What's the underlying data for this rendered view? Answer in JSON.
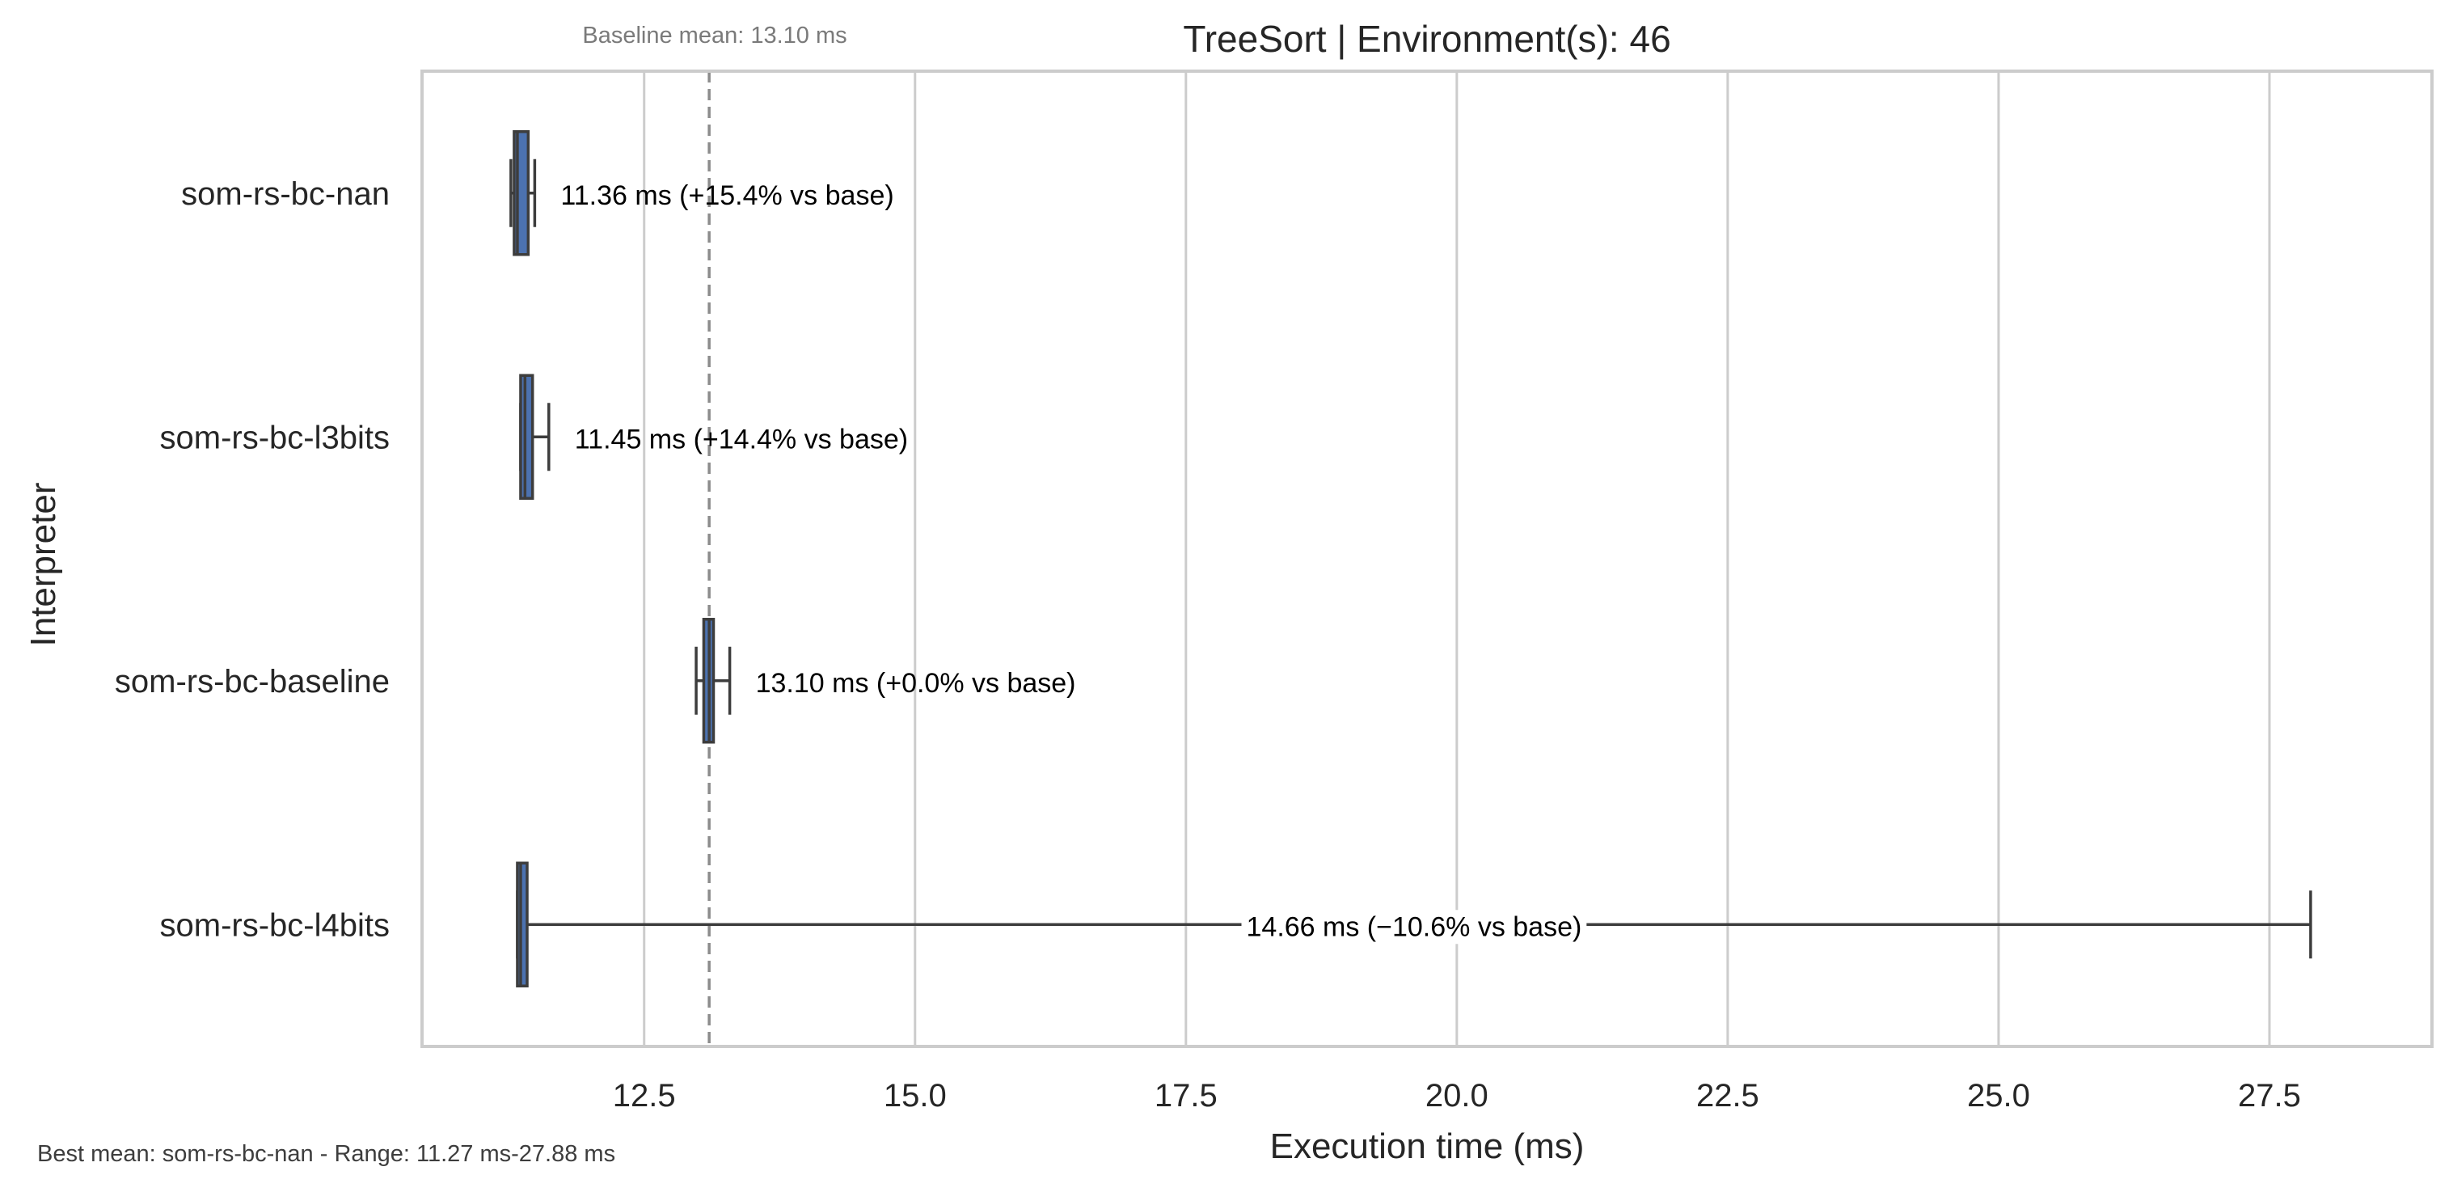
{
  "chart_data": {
    "type": "box",
    "orientation": "horizontal",
    "title": "TreeSort | Environment(s): 46",
    "xlabel": "Execution time (ms)",
    "ylabel": "Interpreter",
    "xlim": [
      10.45,
      29.0
    ],
    "xticks": [
      12.5,
      15.0,
      17.5,
      20.0,
      22.5,
      25.0,
      27.5
    ],
    "xtick_labels": [
      "12.5",
      "15.0",
      "17.5",
      "20.0",
      "22.5",
      "25.0",
      "27.5"
    ],
    "grid": "vertical",
    "box_color": "#4c72b0",
    "baseline": {
      "value": 13.1,
      "label": "Baseline mean: 13.10 ms"
    },
    "categories": [
      "som-rs-bc-nan",
      "som-rs-bc-l3bits",
      "som-rs-bc-baseline",
      "som-rs-bc-l4bits"
    ],
    "boxes": [
      {
        "name": "som-rs-bc-nan",
        "whisker_low": 11.27,
        "q1": 11.3,
        "median": 11.33,
        "q3": 11.43,
        "whisker_high": 11.49,
        "annotation": "11.36 ms  (+15.4% vs base)"
      },
      {
        "name": "som-rs-bc-l3bits",
        "whisker_low": 11.36,
        "q1": 11.36,
        "median": 11.4,
        "q3": 11.47,
        "whisker_high": 11.62,
        "annotation": "11.45 ms  (+14.4% vs base)"
      },
      {
        "name": "som-rs-bc-baseline",
        "whisker_low": 12.98,
        "q1": 13.05,
        "median": 13.1,
        "q3": 13.14,
        "whisker_high": 13.29,
        "annotation": "13.10 ms  (+0.0% vs base)"
      },
      {
        "name": "som-rs-bc-l4bits",
        "whisker_low": 11.33,
        "q1": 11.33,
        "median": 11.36,
        "q3": 11.42,
        "whisker_high": 27.88,
        "annotation": "14.66 ms  (−10.6% vs base)"
      }
    ],
    "footer": "Best mean: som-rs-bc-nan - Range: 11.27 ms-27.88 ms"
  }
}
